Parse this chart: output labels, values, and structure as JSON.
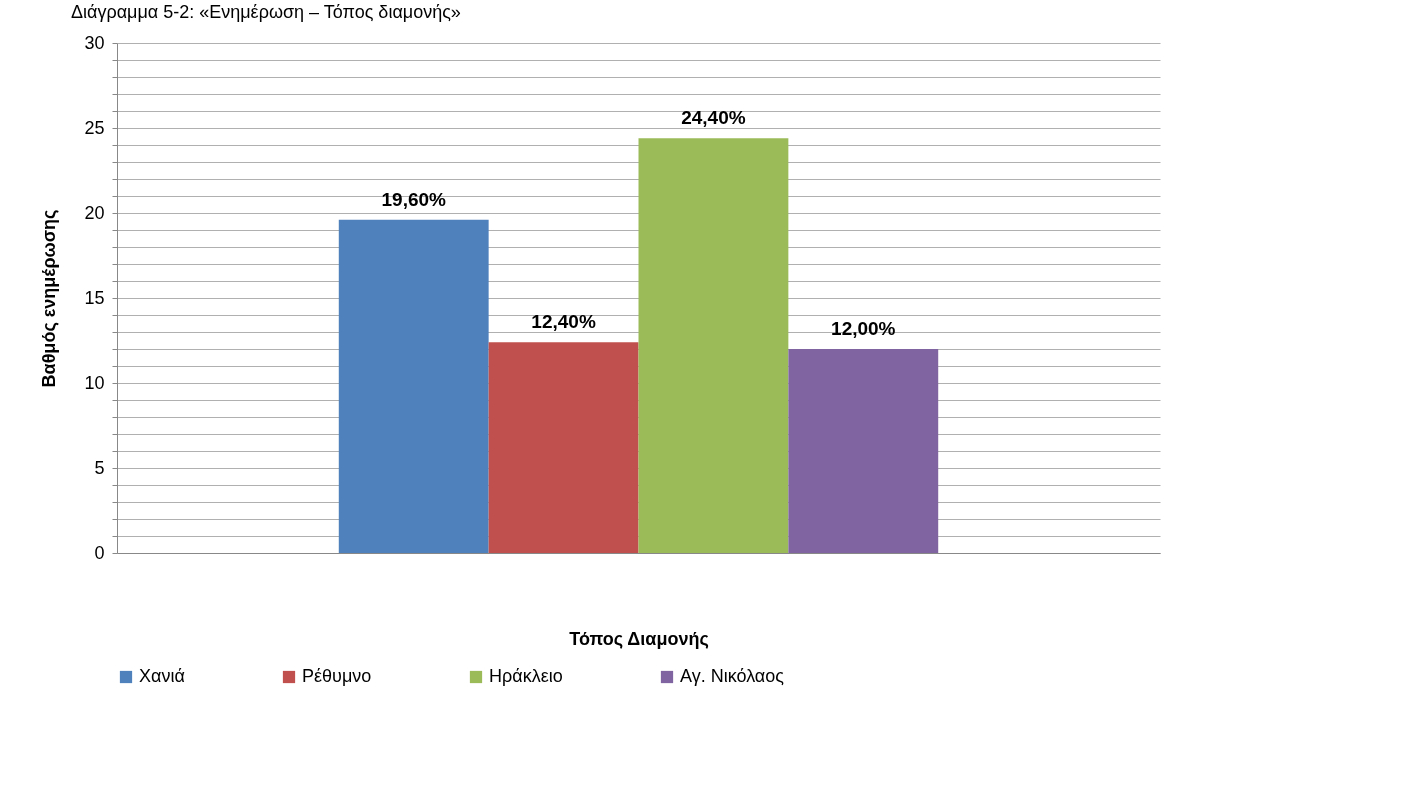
{
  "chart_data": {
    "type": "bar",
    "title": "Διάγραμμα 5-2: «Ενημέρωση – Τόπος διαμονής»",
    "xlabel": "Τόπος Διαμονής",
    "ylabel": "Βαθμός ενημέρωσης",
    "categories": [
      null
    ],
    "series": [
      {
        "name": "Χανιά",
        "color": "#4f81bd",
        "values": [
          19.6
        ],
        "value_labels": [
          "19,60%"
        ]
      },
      {
        "name": "Ρέθυμνο",
        "color": "#c0504d",
        "values": [
          12.4
        ],
        "value_labels": [
          "12,40%"
        ]
      },
      {
        "name": "Ηράκλειο",
        "color": "#9bbb59",
        "values": [
          24.4
        ],
        "value_labels": [
          "24,40%"
        ]
      },
      {
        "name": "Αγ. Νικόλαος",
        "color": "#8064a2",
        "values": [
          12.0
        ],
        "value_labels": [
          "12,00%"
        ]
      }
    ],
    "ylim": [
      0,
      30
    ],
    "yticks": [
      0,
      {
        "value": 1,
        "label": null
      },
      {
        "value": 2,
        "label": null
      },
      {
        "value": 3,
        "label": null
      },
      {
        "value": 4,
        "label": null
      },
      5,
      {
        "value": 6,
        "label": null
      },
      {
        "value": 7,
        "label": null
      },
      {
        "value": 8,
        "label": null
      },
      {
        "value": 9,
        "label": null
      },
      10,
      {
        "value": 11,
        "label": null
      },
      {
        "value": 12,
        "label": null
      },
      {
        "value": 13,
        "label": null
      },
      {
        "value": 14,
        "label": null
      },
      15,
      {
        "value": 16,
        "label": null
      },
      {
        "value": 17,
        "label": null
      },
      {
        "value": 18,
        "label": null
      },
      {
        "value": 19,
        "label": null
      },
      20,
      {
        "value": 21,
        "label": null
      },
      {
        "value": 22,
        "label": null
      },
      {
        "value": 23,
        "label": null
      },
      {
        "value": 24,
        "label": null
      },
      25,
      {
        "value": 26,
        "label": null
      },
      {
        "value": 27,
        "label": null
      },
      {
        "value": 28,
        "label": null
      },
      {
        "value": 29,
        "label": null
      },
      30
    ],
    "grid": true,
    "legend": "bottom"
  }
}
